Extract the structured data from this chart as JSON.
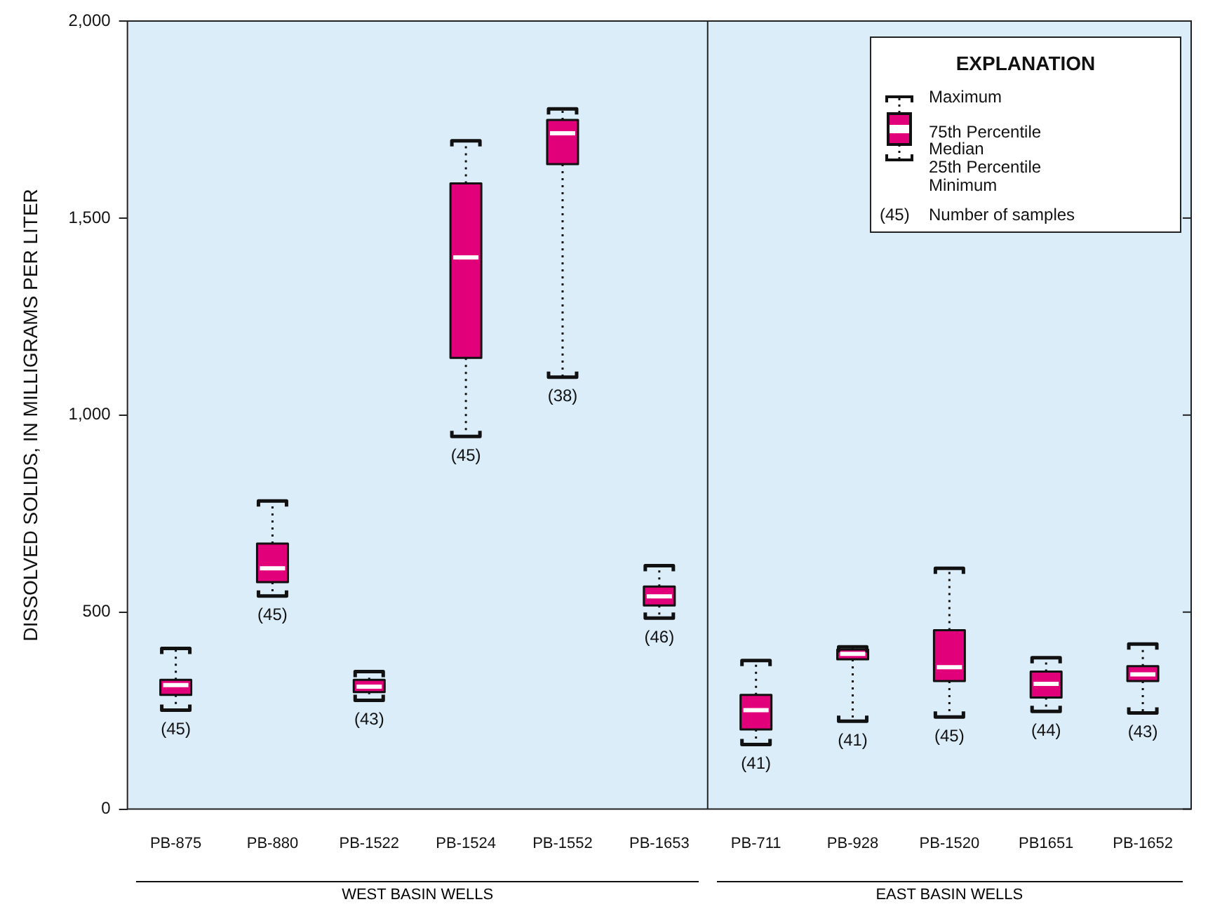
{
  "chart_data": {
    "type": "box",
    "ylabel": "DISSOLVED SOLIDS, IN MILLIGRAMS PER LITER",
    "legend_title": "EXPLANATION",
    "color": "#e2007a",
    "categories": [
      "PB-875",
      "PB-880",
      "PB-1522",
      "PB-1524",
      "PB-1552",
      "PB-1653",
      "PB-711",
      "PB-928",
      "PB-1520",
      "PB1651",
      "PB-1652"
    ],
    "ylim": [
      0,
      2000
    ],
    "yticks": [
      0,
      {
        "value": 500,
        "label": "500"
      },
      {
        "value": 1000,
        "label": "1,000"
      },
      {
        "value": 1500,
        "label": "1,500"
      },
      {
        "value": 2000,
        "label": "2,000"
      }
    ],
    "boxes": [
      {
        "low": 251,
        "q1": 290,
        "median": 315,
        "q3": 328,
        "high": 408
      },
      {
        "low": 541,
        "q1": 576,
        "median": 611,
        "q3": 674,
        "high": 782
      },
      {
        "low": 276,
        "q1": 297,
        "median": 311,
        "q3": 328,
        "high": 349
      },
      {
        "low": 946,
        "q1": 1145,
        "median": 1400,
        "q3": 1588,
        "high": 1696
      },
      {
        "low": 1096,
        "q1": 1637,
        "median": 1715,
        "q3": 1749,
        "high": 1777
      },
      {
        "low": 485,
        "q1": 517,
        "median": 540,
        "q3": 565,
        "high": 618
      },
      {
        "low": 164,
        "q1": 202,
        "median": 251,
        "q3": 290,
        "high": 377
      },
      {
        "low": 223,
        "q1": 380,
        "median": 394,
        "q3": 405,
        "high": 412
      },
      {
        "low": 234,
        "q1": 325,
        "median": 360,
        "q3": 454,
        "high": 611
      },
      {
        "low": 248,
        "q1": 283,
        "median": 318,
        "q3": 349,
        "high": 384
      },
      {
        "low": 244,
        "q1": 325,
        "median": 342,
        "q3": 363,
        "high": 419
      }
    ],
    "annotations": [
      "Maximum",
      "75th Percentile",
      "Median",
      "25th Percentile",
      "Minimum",
      "(45)",
      "Number of samples",
      "WEST BASIN WELLS",
      "EAST BASIN WELLS",
      {
        "text": "(45)",
        "x": "PB-875",
        "y": 251
      },
      {
        "text": "(45)",
        "x": "PB-880",
        "y": 541
      },
      {
        "text": "(43)",
        "x": "PB-1522",
        "y": 276
      },
      {
        "text": "(45)",
        "x": "PB-1524",
        "y": 946
      },
      {
        "text": "(38)",
        "x": "PB-1552",
        "y": 1096
      },
      {
        "text": "(46)",
        "x": "PB-1653",
        "y": 485
      },
      {
        "text": "(41)",
        "x": "PB-711",
        "y": 164
      },
      {
        "text": "(41)",
        "x": "PB-928",
        "y": 223
      },
      {
        "text": "(45)",
        "x": "PB-1520",
        "y": 234
      },
      {
        "text": "(44)",
        "x": "PB1651",
        "y": 248
      },
      {
        "text": "(43)",
        "x": "PB-1652",
        "y": 244
      }
    ]
  }
}
